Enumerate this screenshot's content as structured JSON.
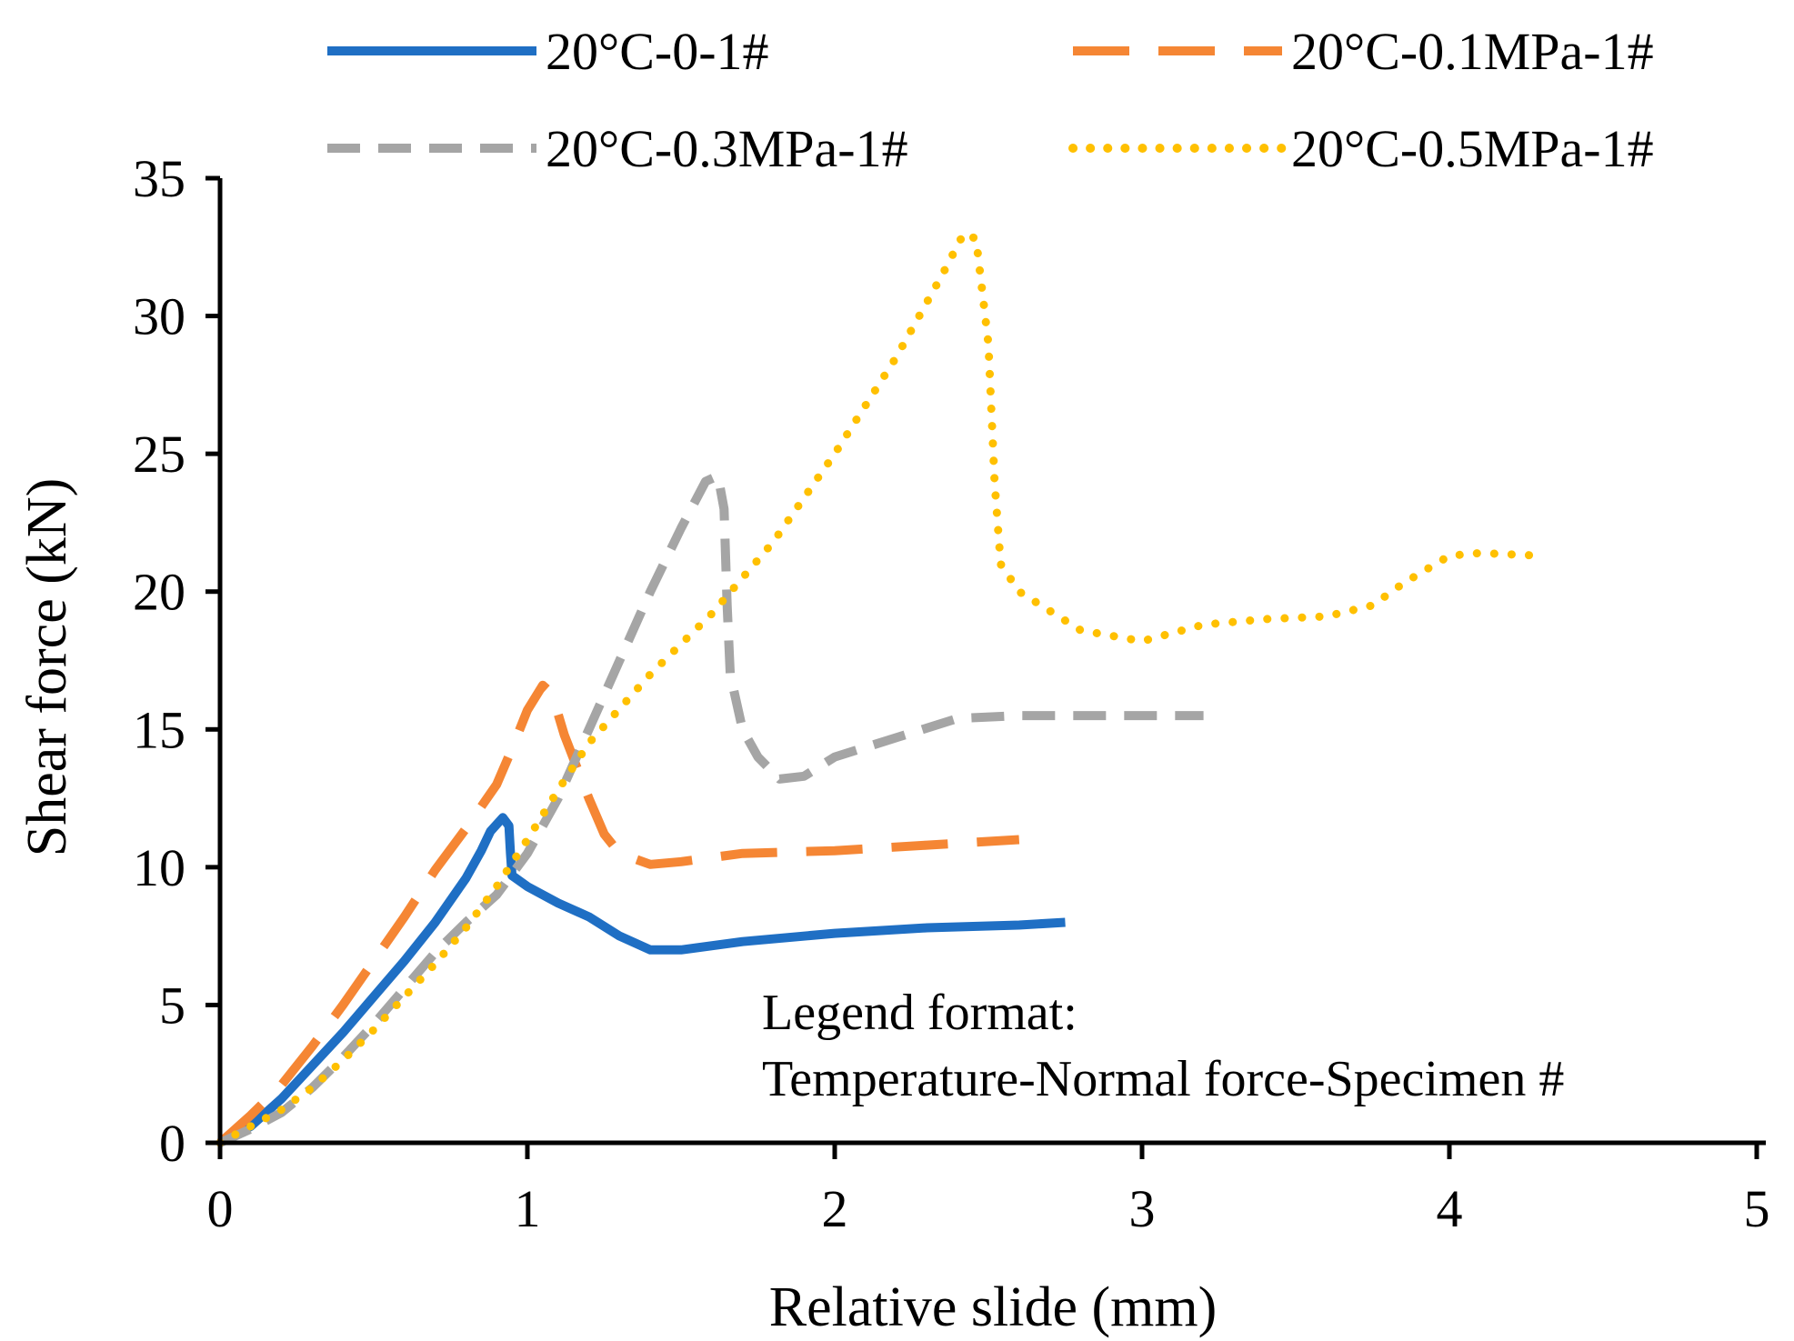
{
  "chart_data": {
    "type": "line",
    "title": "",
    "xlabel": "Relative slide (mm)",
    "ylabel": "Shear force (kN)",
    "xlim": [
      0,
      5
    ],
    "ylim": [
      0,
      35
    ],
    "grid": false,
    "legend_position": "top",
    "x_ticks": [
      "0",
      "1",
      "2",
      "3",
      "4",
      "5"
    ],
    "y_ticks": [
      "0",
      "5",
      "10",
      "15",
      "20",
      "25",
      "30",
      "35"
    ],
    "annotation": [
      "Legend format:",
      "Temperature-Normal force-Specimen #"
    ],
    "series": [
      {
        "name": "20°C-0-1#",
        "color": "#1F6FC4",
        "dash": "solid",
        "points": [
          [
            0,
            0
          ],
          [
            0.1,
            0.6
          ],
          [
            0.2,
            1.6
          ],
          [
            0.3,
            2.8
          ],
          [
            0.4,
            4.0
          ],
          [
            0.5,
            5.3
          ],
          [
            0.6,
            6.6
          ],
          [
            0.7,
            8.0
          ],
          [
            0.8,
            9.6
          ],
          [
            0.85,
            10.6
          ],
          [
            0.88,
            11.3
          ],
          [
            0.92,
            11.8
          ],
          [
            0.94,
            11.5
          ],
          [
            0.945,
            10.5
          ],
          [
            0.95,
            9.7
          ],
          [
            1.0,
            9.3
          ],
          [
            1.1,
            8.7
          ],
          [
            1.2,
            8.2
          ],
          [
            1.3,
            7.5
          ],
          [
            1.4,
            7.0
          ],
          [
            1.5,
            7.0
          ],
          [
            1.7,
            7.3
          ],
          [
            2.0,
            7.6
          ],
          [
            2.3,
            7.8
          ],
          [
            2.6,
            7.9
          ],
          [
            2.75,
            8.0
          ]
        ]
      },
      {
        "name": "20°C-0.1MPa-1#",
        "color": "#F58634",
        "dash": "longdash",
        "points": [
          [
            0,
            0
          ],
          [
            0.1,
            1.0
          ],
          [
            0.2,
            2.1
          ],
          [
            0.3,
            3.5
          ],
          [
            0.4,
            5.0
          ],
          [
            0.5,
            6.6
          ],
          [
            0.6,
            8.2
          ],
          [
            0.7,
            9.9
          ],
          [
            0.8,
            11.4
          ],
          [
            0.9,
            13.0
          ],
          [
            0.95,
            14.3
          ],
          [
            1.0,
            15.7
          ],
          [
            1.05,
            16.6
          ],
          [
            1.08,
            16.3
          ],
          [
            1.12,
            14.8
          ],
          [
            1.2,
            12.5
          ],
          [
            1.25,
            11.2
          ],
          [
            1.3,
            10.5
          ],
          [
            1.4,
            10.1
          ],
          [
            1.5,
            10.2
          ],
          [
            1.7,
            10.5
          ],
          [
            2.0,
            10.6
          ],
          [
            2.3,
            10.8
          ],
          [
            2.6,
            11.0
          ]
        ]
      },
      {
        "name": "20°C-0.3MPa-1#",
        "color": "#A5A5A5",
        "dash": "dash",
        "points": [
          [
            0,
            0
          ],
          [
            0.1,
            0.5
          ],
          [
            0.2,
            1.1
          ],
          [
            0.3,
            2.0
          ],
          [
            0.4,
            3.1
          ],
          [
            0.5,
            4.3
          ],
          [
            0.6,
            5.6
          ],
          [
            0.7,
            6.9
          ],
          [
            0.8,
            8.0
          ],
          [
            0.9,
            9.0
          ],
          [
            1.0,
            10.5
          ],
          [
            1.1,
            12.5
          ],
          [
            1.2,
            15.0
          ],
          [
            1.3,
            17.5
          ],
          [
            1.4,
            20.0
          ],
          [
            1.5,
            22.3
          ],
          [
            1.58,
            24.0
          ],
          [
            1.62,
            24.2
          ],
          [
            1.64,
            23.0
          ],
          [
            1.65,
            19.5
          ],
          [
            1.66,
            17.0
          ],
          [
            1.7,
            15.0
          ],
          [
            1.75,
            14.0
          ],
          [
            1.82,
            13.2
          ],
          [
            1.9,
            13.3
          ],
          [
            2.0,
            14.0
          ],
          [
            2.2,
            14.7
          ],
          [
            2.4,
            15.4
          ],
          [
            2.6,
            15.5
          ],
          [
            2.9,
            15.5
          ],
          [
            3.2,
            15.5
          ]
        ]
      },
      {
        "name": "20°C-0.5MPa-1#",
        "color": "#FFC000",
        "dash": "dot",
        "points": [
          [
            0,
            0
          ],
          [
            0.1,
            0.6
          ],
          [
            0.2,
            1.2
          ],
          [
            0.3,
            2.0
          ],
          [
            0.4,
            3.0
          ],
          [
            0.5,
            4.1
          ],
          [
            0.6,
            5.3
          ],
          [
            0.7,
            6.5
          ],
          [
            0.8,
            7.8
          ],
          [
            0.9,
            9.3
          ],
          [
            1.0,
            11.0
          ],
          [
            1.1,
            12.8
          ],
          [
            1.2,
            14.5
          ],
          [
            1.4,
            17.0
          ],
          [
            1.6,
            19.2
          ],
          [
            1.8,
            21.8
          ],
          [
            2.0,
            25.0
          ],
          [
            2.2,
            28.5
          ],
          [
            2.35,
            31.5
          ],
          [
            2.42,
            33.0
          ],
          [
            2.46,
            32.8
          ],
          [
            2.5,
            29.0
          ],
          [
            2.52,
            24.0
          ],
          [
            2.54,
            21.0
          ],
          [
            2.6,
            20.0
          ],
          [
            2.8,
            18.6
          ],
          [
            3.0,
            18.2
          ],
          [
            3.2,
            18.8
          ],
          [
            3.4,
            19.0
          ],
          [
            3.6,
            19.1
          ],
          [
            3.75,
            19.5
          ],
          [
            3.85,
            20.3
          ],
          [
            4.0,
            21.3
          ],
          [
            4.1,
            21.4
          ],
          [
            4.3,
            21.3
          ]
        ]
      }
    ]
  }
}
